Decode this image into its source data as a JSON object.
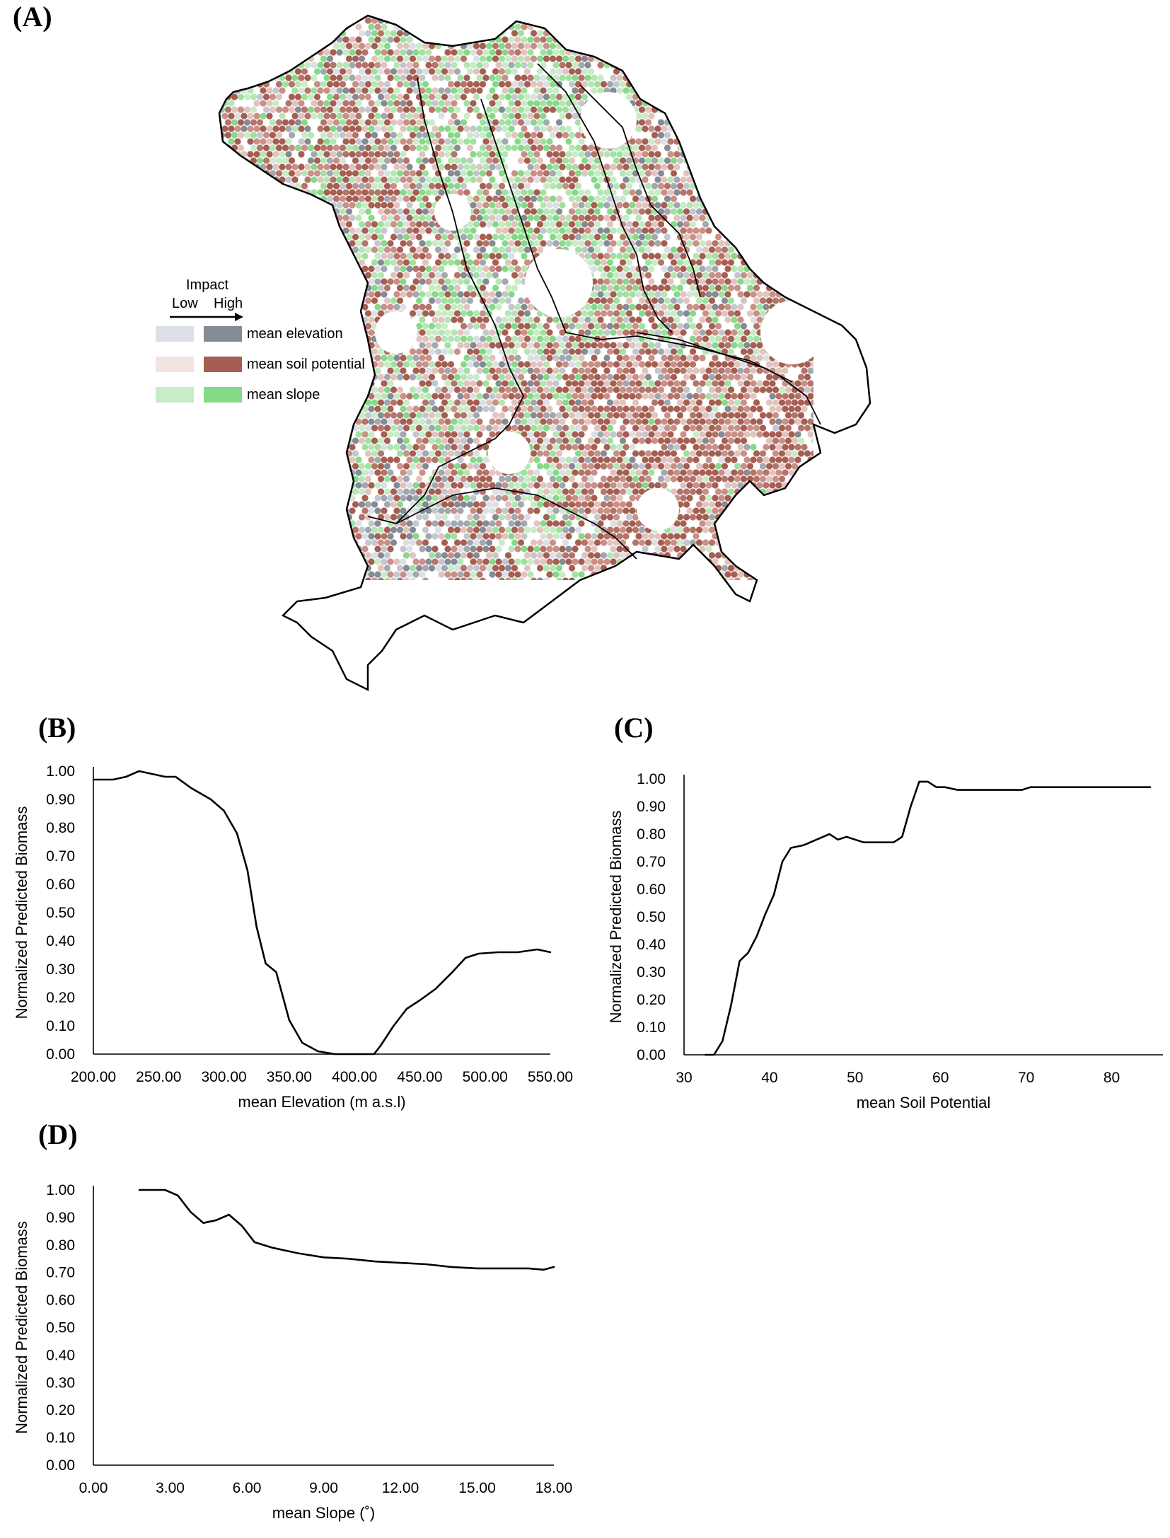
{
  "panels": {
    "a": "(A)",
    "b": "(B)",
    "c": "(C)",
    "d": "(D)"
  },
  "legend": {
    "title": "Impact",
    "low": "Low",
    "high": "High",
    "items": [
      {
        "label": "mean elevation",
        "low_color": "#dcdfe3",
        "high_color": "#858b94"
      },
      {
        "label": "mean soil potential",
        "low_color": "#f1e4e1",
        "high_color": "#a55f52"
      },
      {
        "label": "mean slope",
        "low_color": "#c8ecc5",
        "high_color": "#87d98a"
      }
    ]
  },
  "chart_data": [
    {
      "type": "line",
      "panel": "(B)",
      "xlabel": "mean Elevation (m a.s.l)",
      "ylabel": "Normalized Predicted Biomass",
      "xlim": [
        200,
        550
      ],
      "ylim": [
        0,
        1
      ],
      "xticks": [
        "200.00",
        "250.00",
        "300.00",
        "350.00",
        "400.00",
        "450.00",
        "500.00",
        "550.00"
      ],
      "yticks": [
        "0.00",
        "0.10",
        "0.20",
        "0.30",
        "0.40",
        "0.50",
        "0.60",
        "0.70",
        "0.80",
        "0.90",
        "1.00"
      ],
      "x": [
        200,
        215,
        225,
        235,
        245,
        255,
        263,
        275,
        290,
        300,
        310,
        318,
        325,
        332,
        340,
        350,
        360,
        372,
        385,
        395,
        405,
        415,
        420,
        430,
        440,
        450,
        462,
        475,
        485,
        495,
        510,
        525,
        540,
        550
      ],
      "y": [
        0.97,
        0.97,
        0.98,
        1.0,
        0.99,
        0.98,
        0.98,
        0.94,
        0.9,
        0.86,
        0.78,
        0.65,
        0.45,
        0.32,
        0.29,
        0.12,
        0.04,
        0.01,
        0.0,
        0.0,
        0.0,
        0.0,
        0.03,
        0.1,
        0.16,
        0.19,
        0.23,
        0.29,
        0.34,
        0.355,
        0.36,
        0.36,
        0.37,
        0.36
      ]
    },
    {
      "type": "line",
      "panel": "(C)",
      "xlabel": "mean Soil Potential",
      "ylabel": "Normalized Predicted Biomass",
      "xlim": [
        30,
        85
      ],
      "ylim": [
        0,
        1
      ],
      "xticks": [
        "30",
        "40",
        "50",
        "60",
        "70",
        "80"
      ],
      "yticks": [
        "0.00",
        "0.10",
        "0.20",
        "0.30",
        "0.40",
        "0.50",
        "0.60",
        "0.70",
        "0.80",
        "0.90",
        "1.00"
      ],
      "x": [
        32.5,
        33.5,
        34.5,
        35.5,
        36.5,
        37.5,
        38.5,
        39.5,
        40.5,
        41.5,
        42.5,
        44,
        45.5,
        47,
        48,
        49,
        50,
        51,
        53,
        54.5,
        55.5,
        56.5,
        57.5,
        58.5,
        59.5,
        60.5,
        62,
        64,
        66,
        68,
        69.5,
        70.5,
        72,
        74,
        76,
        78,
        80,
        82,
        84.5
      ],
      "y": [
        0.0,
        0.0,
        0.05,
        0.18,
        0.34,
        0.37,
        0.43,
        0.51,
        0.58,
        0.7,
        0.75,
        0.76,
        0.78,
        0.8,
        0.78,
        0.79,
        0.78,
        0.77,
        0.77,
        0.77,
        0.79,
        0.9,
        0.99,
        0.99,
        0.97,
        0.97,
        0.96,
        0.96,
        0.96,
        0.96,
        0.96,
        0.97,
        0.97,
        0.97,
        0.97,
        0.97,
        0.97,
        0.97,
        0.97
      ]
    },
    {
      "type": "line",
      "panel": "(D)",
      "xlabel": "mean Slope (˚)",
      "ylabel": "Normalized Predicted Biomass",
      "xlim": [
        0,
        18
      ],
      "ylim": [
        0,
        1
      ],
      "xticks": [
        "0.00",
        "3.00",
        "6.00",
        "9.00",
        "12.00",
        "15.00",
        "18.00"
      ],
      "yticks": [
        "0.00",
        "0.10",
        "0.20",
        "0.30",
        "0.40",
        "0.50",
        "0.60",
        "0.70",
        "0.80",
        "0.90",
        "1.00"
      ],
      "x": [
        1.8,
        2.3,
        2.8,
        3.3,
        3.8,
        4.3,
        4.8,
        5.3,
        5.8,
        6.3,
        7.0,
        8.0,
        9.0,
        10.0,
        11.0,
        12.0,
        13.0,
        14.0,
        15.0,
        16.0,
        17.0,
        17.6,
        18.0
      ],
      "y": [
        1.0,
        1.0,
        1.0,
        0.98,
        0.92,
        0.88,
        0.89,
        0.91,
        0.87,
        0.81,
        0.79,
        0.77,
        0.755,
        0.75,
        0.74,
        0.735,
        0.73,
        0.72,
        0.715,
        0.715,
        0.715,
        0.71,
        0.72
      ]
    }
  ]
}
